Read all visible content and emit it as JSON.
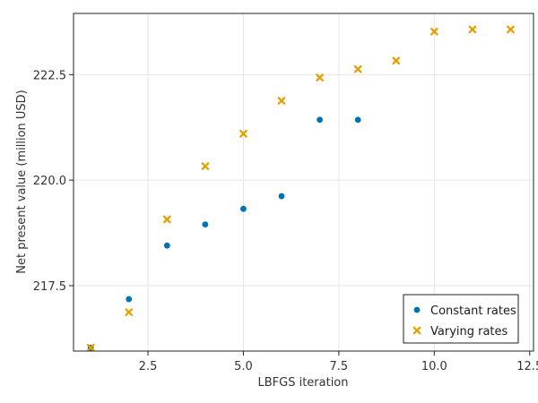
{
  "chart_data": {
    "type": "scatter",
    "title": "",
    "xlabel": "LBFGS iteration",
    "ylabel": "Net present value (million USD)",
    "xlim": [
      0.55,
      12.6
    ],
    "ylim": [
      215.95,
      223.95
    ],
    "xticks": [
      2.5,
      5.0,
      7.5,
      10.0,
      12.5
    ],
    "xtick_labels": [
      "2.5",
      "5.0",
      "7.5",
      "10.0",
      "12.5"
    ],
    "yticks": [
      217.5,
      220.0,
      222.5
    ],
    "ytick_labels": [
      "217.5",
      "220.0",
      "222.5"
    ],
    "grid": true,
    "legend_position": "bottom-right",
    "series": [
      {
        "name": "Constant rates",
        "marker": "circle",
        "color": "#0072b2",
        "x": [
          1,
          2,
          3,
          4,
          5,
          6,
          7,
          8
        ],
        "y": [
          216.03,
          217.18,
          218.45,
          218.95,
          219.32,
          219.62,
          221.43,
          221.43
        ]
      },
      {
        "name": "Varying rates",
        "marker": "x",
        "color": "#e69f00",
        "x": [
          1,
          2,
          3,
          4,
          5,
          6,
          7,
          8,
          9,
          10,
          11,
          12
        ],
        "y": [
          216.03,
          216.87,
          219.07,
          220.33,
          221.1,
          221.88,
          222.43,
          222.63,
          222.83,
          223.52,
          223.57,
          223.57
        ]
      }
    ]
  }
}
